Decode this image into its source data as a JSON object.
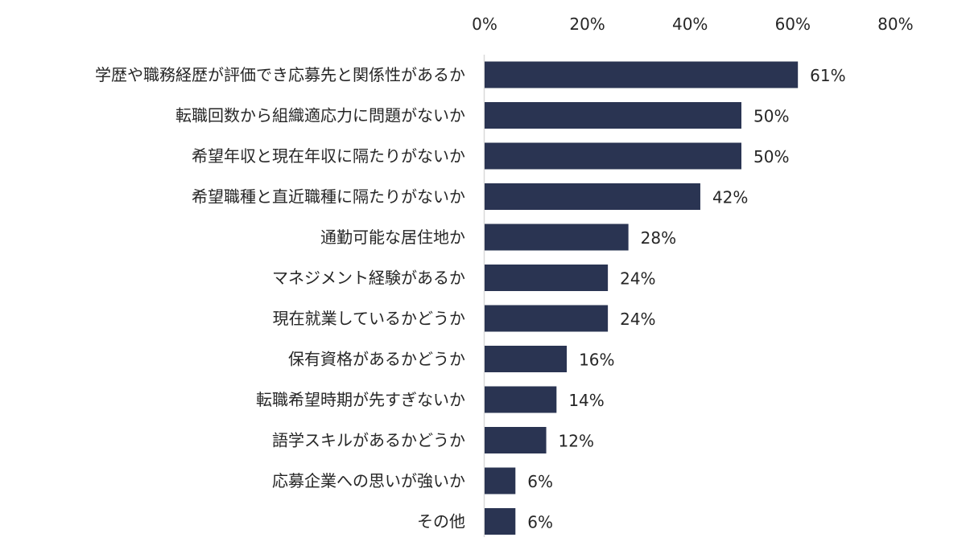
{
  "chart_data": {
    "type": "bar",
    "orientation": "horizontal",
    "title": "",
    "xlabel": "",
    "ylabel": "",
    "xlim": [
      0,
      80
    ],
    "x_ticks": [
      0,
      20,
      40,
      60,
      80
    ],
    "x_tick_labels": [
      "0%",
      "20%",
      "40%",
      "60%",
      "80%"
    ],
    "x_axis_position": "top",
    "grid": false,
    "legend": "none",
    "bar_color": "#2a3452",
    "categories": [
      "学歴や職務経歴が評価でき応募先と関係性があるか",
      "転職回数から組織適応力に問題がないか",
      "希望年収と現在年収に隔たりがないか",
      "希望職種と直近職種に隔たりがないか",
      "通勤可能な居住地か",
      "マネジメント経験があるか",
      "現在就業しているかどうか",
      "保有資格があるかどうか",
      "転職希望時期が先すぎないか",
      "語学スキルがあるかどうか",
      "応募企業への思いが強いか",
      "その他"
    ],
    "values": [
      61,
      50,
      50,
      42,
      28,
      24,
      24,
      16,
      14,
      12,
      6,
      6
    ],
    "data_labels": [
      "61%",
      "50%",
      "50%",
      "42%",
      "28%",
      "24%",
      "24%",
      "16%",
      "14%",
      "12%",
      "6%",
      "6%"
    ]
  }
}
